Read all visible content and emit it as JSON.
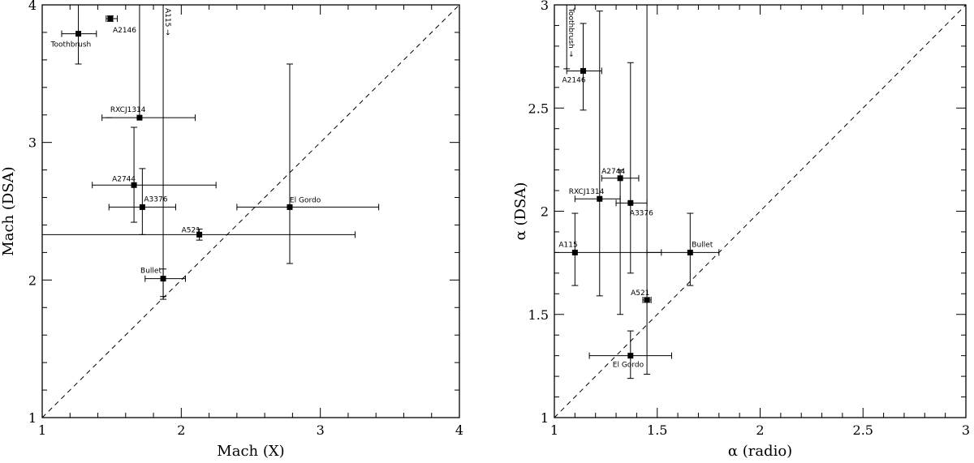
{
  "chart_data": [
    {
      "type": "scatter",
      "xlabel": "Mach (X)",
      "ylabel": "Mach (DSA)",
      "xlim": [
        1,
        4
      ],
      "ylim": [
        1,
        4
      ],
      "xticks": [
        1,
        2,
        3,
        4
      ],
      "yticks": [
        1,
        2,
        3,
        4
      ],
      "xtick_labels": [
        "1",
        "2",
        "3",
        "4"
      ],
      "ytick_labels": [
        "1",
        "2",
        "3",
        "4"
      ],
      "reference_line": "y = x (dashed)",
      "grid": false,
      "legend": "none",
      "points": [
        {
          "label": "Toothbrush",
          "x": 1.26,
          "y": 3.79,
          "x_lo": 1.14,
          "x_hi": 1.39,
          "y_lo": 3.57,
          "y_hi": 4.0
        },
        {
          "label": "A2146",
          "x": 1.49,
          "y": 3.9,
          "x_lo": 1.46,
          "x_hi": 1.54,
          "y_lo": 3.88,
          "y_hi": 3.92
        },
        {
          "label": "RXCJ1314",
          "x": 1.7,
          "y": 3.18,
          "x_lo": 1.43,
          "x_hi": 2.1,
          "y_lo": 3.18,
          "y_hi": 4.0,
          "y_lo_bar_x": 1.48
        },
        {
          "label": "A2744",
          "x": 1.66,
          "y": 2.69,
          "x_lo": 1.36,
          "x_hi": 2.25,
          "y_lo": 2.42,
          "y_hi": 3.11
        },
        {
          "label": "A3376",
          "x": 1.72,
          "y": 2.53,
          "x_lo": 1.48,
          "x_hi": 1.96,
          "y_lo": 2.33,
          "y_hi": 2.81
        },
        {
          "label": "El Gordo",
          "x": 2.78,
          "y": 2.53,
          "x_lo": 2.4,
          "x_hi": 3.42,
          "y_lo": 2.12,
          "y_hi": 3.57
        },
        {
          "label": "A521",
          "x": 2.13,
          "y": 2.33,
          "x_lo": 1.0,
          "x_hi": 3.25,
          "y_lo": 2.29,
          "y_hi": 2.37
        },
        {
          "label": "Bullet",
          "x": 1.87,
          "y": 2.01,
          "x_lo": 1.74,
          "x_hi": 2.03,
          "y_lo": 1.86,
          "y_hi": 2.08
        },
        {
          "label": "A115 →",
          "x": 1.87,
          "y": 4.0,
          "x_lo": 1.87,
          "x_hi": 1.87,
          "y_lo": 1.88,
          "y_hi": 4.0,
          "arrow": "right"
        }
      ]
    },
    {
      "type": "scatter",
      "xlabel": "α (radio)",
      "ylabel": "α (DSA)",
      "xlim": [
        1,
        3
      ],
      "ylim": [
        1,
        3
      ],
      "xticks": [
        1,
        1.5,
        2,
        2.5,
        3
      ],
      "yticks": [
        1,
        1.5,
        2,
        2.5,
        3
      ],
      "xtick_labels": [
        "1",
        "1.5",
        "2",
        "2.5",
        "3"
      ],
      "ytick_labels": [
        "1",
        "1.5",
        "2",
        "2.5",
        "3"
      ],
      "reference_line": "y = x (dashed)",
      "grid": false,
      "legend": "none",
      "points": [
        {
          "label": "Toothbrush →",
          "x": 1.06,
          "y": 3.0,
          "x_lo": 1.06,
          "x_hi": 1.06,
          "y_lo": 2.69,
          "y_hi": 3.0,
          "arrow": "right",
          "vertical_label": true
        },
        {
          "label": "A2146",
          "x": 1.14,
          "y": 2.68,
          "x_lo": 1.06,
          "x_hi": 1.23,
          "y_lo": 2.49,
          "y_hi": 2.91
        },
        {
          "label": "A2744",
          "x": 1.32,
          "y": 2.16,
          "x_lo": 1.23,
          "x_hi": 1.41,
          "y_lo": 1.5,
          "y_hi": 2.2
        },
        {
          "label": "RXCJ1314",
          "x": 1.22,
          "y": 2.06,
          "x_lo": 1.1,
          "x_hi": 1.32,
          "y_lo": 1.59,
          "y_hi": 2.97
        },
        {
          "label": "A3376",
          "x": 1.37,
          "y": 2.04,
          "x_lo": 1.3,
          "x_hi": 1.45,
          "y_lo": 1.7,
          "y_hi": 2.72
        },
        {
          "label": "A115",
          "x": 1.1,
          "y": 1.8,
          "x_lo": 1.0,
          "x_hi": 1.52,
          "y_lo": 1.64,
          "y_hi": 1.99
        },
        {
          "label": "Bullet",
          "x": 1.66,
          "y": 1.8,
          "x_lo": 1.45,
          "x_hi": 1.8,
          "y_lo": 1.64,
          "y_hi": 1.99
        },
        {
          "label": "A521",
          "x": 1.45,
          "y": 1.57,
          "x_lo": 1.43,
          "x_hi": 1.47,
          "y_lo": 1.56,
          "y_hi": 1.58
        },
        {
          "label": "El Gordo",
          "x": 1.37,
          "y": 1.3,
          "x_lo": 1.17,
          "x_hi": 1.57,
          "y_lo": 1.19,
          "y_hi": 1.42
        },
        {
          "label": "",
          "x": 1.45,
          "y": 1.45,
          "x_lo": 1.45,
          "x_hi": 1.45,
          "y_lo": 1.21,
          "y_hi": 3.0
        }
      ]
    }
  ]
}
